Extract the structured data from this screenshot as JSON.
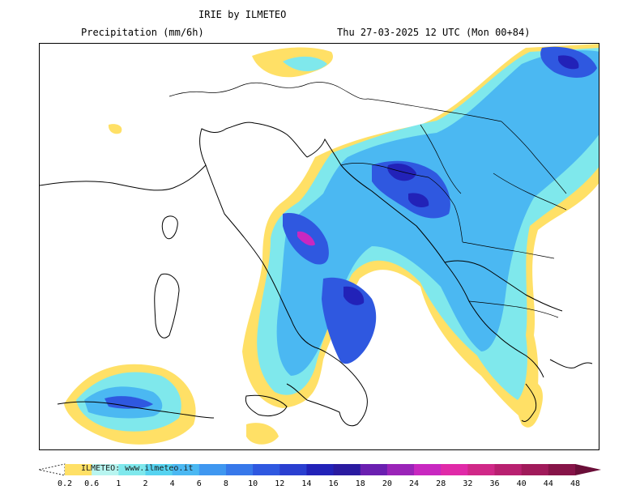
{
  "header": {
    "title": "IRIE by ILMETEO",
    "subtitle": "Precipitation (mm/6h)",
    "valid_time": "Thu 27-03-2025 12 UTC (Mon 00+84)"
  },
  "legend": {
    "watermark": "ILMETEO: www.ilmeteo.it",
    "labels": [
      "0.2",
      "0.6",
      "1",
      "2",
      "4",
      "6",
      "8",
      "10",
      "12",
      "14",
      "16",
      "18",
      "20",
      "24",
      "28",
      "32",
      "36",
      "40",
      "44",
      "48"
    ],
    "colors": [
      "#ffe066",
      "#b8f5f0",
      "#7fe8ec",
      "#56d3f0",
      "#4bb8f2",
      "#3f97f0",
      "#3778ea",
      "#2f58e0",
      "#2a3fd0",
      "#2222b8",
      "#2a1aa0",
      "#6a1fb0",
      "#9a24b8",
      "#c828c0",
      "#e02aa8",
      "#d02888",
      "#b82070",
      "#a01a5a",
      "#861448",
      "#6a0e38"
    ]
  },
  "colors": {
    "coast": "#000000",
    "land": "#ffffff",
    "no_rain": "#ffffff",
    "light_rain": "#ffe066",
    "max_rain": "#c828c0"
  }
}
